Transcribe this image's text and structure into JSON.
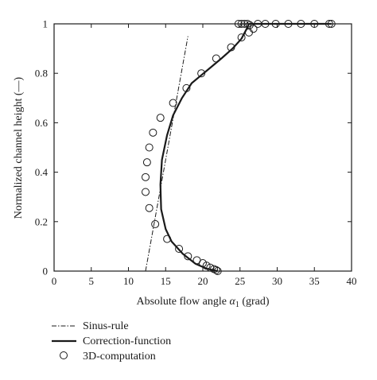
{
  "chart_data": {
    "type": "line",
    "xlabel_main": "Absolute flow angle ",
    "xlabel_symbol": "α",
    "xlabel_sub": "1",
    "xlabel_unit": " (grad)",
    "ylabel": "Normalized channel height (—)",
    "xlim": [
      0,
      40
    ],
    "ylim": [
      0,
      1
    ],
    "x_ticks": [
      "0",
      "5",
      "10",
      "15",
      "20",
      "25",
      "30",
      "35",
      "40"
    ],
    "y_ticks": [
      "0",
      "0.2",
      "0.4",
      "0.6",
      "0.8",
      "1"
    ],
    "grid": false,
    "legend_position": "below",
    "series": [
      {
        "name": "Sinus-rule",
        "style": "dash-dot",
        "points": [
          [
            12.3,
            0.0
          ],
          [
            18.0,
            0.95
          ]
        ]
      },
      {
        "name": "Correction-function",
        "style": "solid",
        "points": [
          [
            22.0,
            0.0
          ],
          [
            20.5,
            0.01
          ],
          [
            19.0,
            0.03
          ],
          [
            17.3,
            0.07
          ],
          [
            15.8,
            0.12
          ],
          [
            15.0,
            0.17
          ],
          [
            14.4,
            0.25
          ],
          [
            14.3,
            0.35
          ],
          [
            14.5,
            0.45
          ],
          [
            15.2,
            0.55
          ],
          [
            16.0,
            0.63
          ],
          [
            17.2,
            0.7
          ],
          [
            18.5,
            0.76
          ],
          [
            20.5,
            0.81
          ],
          [
            22.5,
            0.86
          ],
          [
            24.0,
            0.9
          ],
          [
            25.2,
            0.94
          ],
          [
            25.9,
            0.98
          ],
          [
            26.2,
            1.0
          ],
          [
            30.0,
            1.0
          ],
          [
            37.3,
            1.0
          ]
        ]
      },
      {
        "name": "3D-computation",
        "style": "marker-circle",
        "points": [
          [
            22.0,
            0.0
          ],
          [
            21.8,
            0.004
          ],
          [
            21.5,
            0.008
          ],
          [
            21.0,
            0.014
          ],
          [
            20.5,
            0.022
          ],
          [
            20.0,
            0.032
          ],
          [
            19.2,
            0.044
          ],
          [
            18.0,
            0.06
          ],
          [
            16.8,
            0.09
          ],
          [
            15.2,
            0.13
          ],
          [
            13.6,
            0.19
          ],
          [
            12.8,
            0.255
          ],
          [
            12.3,
            0.32
          ],
          [
            12.3,
            0.38
          ],
          [
            12.5,
            0.44
          ],
          [
            12.8,
            0.5
          ],
          [
            13.3,
            0.56
          ],
          [
            14.3,
            0.62
          ],
          [
            16.0,
            0.68
          ],
          [
            17.8,
            0.74
          ],
          [
            19.8,
            0.8
          ],
          [
            21.8,
            0.86
          ],
          [
            23.8,
            0.905
          ],
          [
            25.2,
            0.945
          ],
          [
            26.2,
            0.965
          ],
          [
            26.8,
            0.98
          ],
          [
            26.3,
            0.995
          ],
          [
            26.0,
            1.0
          ],
          [
            25.2,
            1.0
          ],
          [
            24.8,
            1.0
          ],
          [
            25.6,
            1.0
          ],
          [
            27.4,
            1.0
          ],
          [
            28.4,
            1.0
          ],
          [
            29.8,
            1.0
          ],
          [
            31.5,
            1.0
          ],
          [
            33.2,
            1.0
          ],
          [
            35.0,
            1.0
          ],
          [
            37.0,
            1.0
          ],
          [
            37.3,
            1.0
          ]
        ]
      }
    ]
  }
}
